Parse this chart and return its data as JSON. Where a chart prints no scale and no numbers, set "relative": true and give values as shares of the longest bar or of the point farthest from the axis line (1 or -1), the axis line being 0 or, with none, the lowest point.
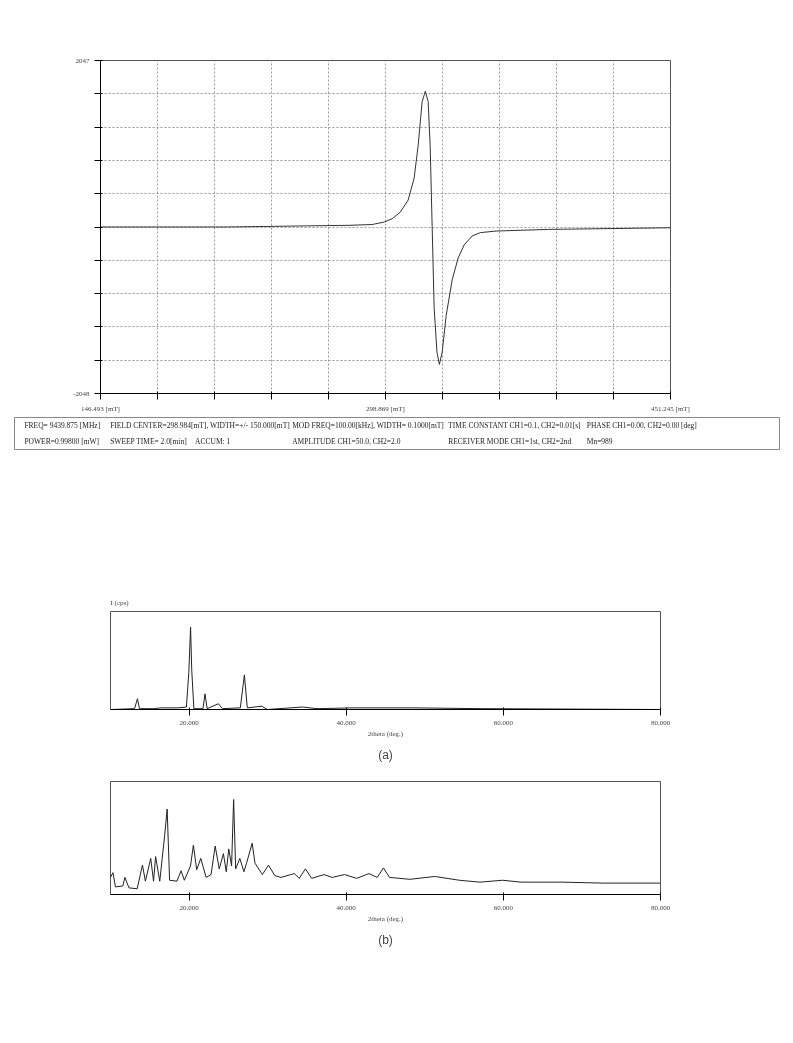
{
  "chart_data": [
    {
      "type": "line",
      "xlim": [
        146.493,
        451.245
      ],
      "ylim": [
        -2048,
        2047
      ],
      "xticks": [
        {
          "value": 146.493,
          "label": "146.493 [mT]"
        },
        {
          "value": 176.968,
          "label": null
        },
        {
          "value": 207.444,
          "label": null
        },
        {
          "value": 237.919,
          "label": null
        },
        {
          "value": 268.394,
          "label": null
        },
        {
          "value": 298.869,
          "label": "298.869 [mT]"
        },
        {
          "value": 329.344,
          "label": null
        },
        {
          "value": 359.82,
          "label": null
        },
        {
          "value": 390.295,
          "label": null
        },
        {
          "value": 420.77,
          "label": null
        },
        {
          "value": 451.245,
          "label": "451.245 [mT]"
        }
      ],
      "yticks": [
        {
          "value": -2048,
          "label": "-2048"
        },
        {
          "value": -1638.5,
          "label": null
        },
        {
          "value": -1229,
          "label": null
        },
        {
          "value": -819.5,
          "label": null
        },
        {
          "value": -410,
          "label": null
        },
        {
          "value": -0.5,
          "label": null
        },
        {
          "value": 409,
          "label": null
        },
        {
          "value": 818.5,
          "label": null
        },
        {
          "value": 1228,
          "label": null
        },
        {
          "value": 1637.5,
          "label": null
        },
        {
          "value": 2047,
          "label": "2047"
        }
      ],
      "grid": true,
      "line_style": "solid",
      "series": [
        {
          "color": "#333333",
          "x": [
            146.493,
            214.6,
            278.84,
            291.7,
            298.12,
            302.4,
            306.68,
            310.97,
            314.18,
            316.32,
            318.46,
            320.18,
            321.68,
            322.75,
            323.82,
            324.89,
            326.39,
            327.67,
            329.17,
            331.31,
            334.52,
            337.74,
            340.95,
            345.23,
            349.52,
            358.08,
            385.92,
            451.24
          ],
          "values": [
            0,
            0,
            20,
            30,
            60,
            100,
            180,
            330,
            600,
            1000,
            1540,
            1670,
            1540,
            1000,
            0,
            -1000,
            -1540,
            -1690,
            -1540,
            -1090,
            -650,
            -380,
            -220,
            -110,
            -70,
            -50,
            -30,
            -10
          ]
        }
      ],
      "annotations": [
        "FREQ= 9439.875 [MHz]",
        "FIELD CENTER=298.984[mT], WIDTH=+/- 150.000[mT]",
        "MOD FREQ=100.00[kHz], WIDTH= 0.1000[mT]",
        "TIME CONSTANT CH1=0.1, CH2=0.01[s]",
        "PHASE CH1=0.00, CH2=0.00 [deg]",
        "POWER=0.99800 [mW]",
        "SWEEP TIME= 2.0[min]",
        "ACCUM: 1",
        "AMPLITUDE CH1=50.0, CH2=2.0",
        "RECEIVER MODE CH1=1st, CH2=2nd",
        "Mn=989"
      ]
    },
    {
      "type": "line",
      "relative": true,
      "xlim": [
        10,
        80
      ],
      "xlabel": "2theta (deg.)",
      "ylabel": "I (cps)",
      "xticks": [
        {
          "value": 20,
          "label": "20.000"
        },
        {
          "value": 40,
          "label": "40.000"
        },
        {
          "value": 60,
          "label": "60.000"
        },
        {
          "value": 80,
          "label": "80.000"
        }
      ],
      "series": [
        {
          "color": "#222222",
          "x": [
            10,
            13.06,
            13.43,
            13.69,
            15.44,
            16.49,
            18.6,
            19.66,
            19.97,
            20.19,
            20.34,
            20.61,
            21.77,
            22.03,
            22.3,
            23.72,
            24.25,
            26.52,
            27.04,
            27.41,
            29.26,
            29.95,
            34.43,
            36.28,
            41.03,
            48.42,
            57.39,
            80
          ],
          "values": [
            0,
            0.01,
            0.13,
            0.01,
            0.01,
            0.02,
            0.02,
            0.03,
            0.45,
            1.0,
            0.48,
            0.01,
            0.01,
            0.19,
            0.01,
            0.07,
            0.01,
            0.02,
            0.42,
            0.02,
            0.04,
            0,
            0.03,
            0.01,
            0.02,
            0.02,
            0.01,
            0
          ]
        }
      ],
      "annotations": [
        "(a)"
      ]
    },
    {
      "type": "line",
      "relative": true,
      "xlim": [
        10,
        80
      ],
      "xlabel": "2theta (deg.)",
      "xticks": [
        {
          "value": 20,
          "label": "20.000"
        },
        {
          "value": 40,
          "label": "40.000"
        },
        {
          "value": 60,
          "label": "60.000"
        },
        {
          "value": 80,
          "label": "80.000"
        }
      ],
      "series": [
        {
          "color": "#222222",
          "x": [
            10,
            10.31,
            10.63,
            11.57,
            11.83,
            12.35,
            13.39,
            14.07,
            14.44,
            15.12,
            15.48,
            15.74,
            16.27,
            16.89,
            17.21,
            17.52,
            18.46,
            18.98,
            19.4,
            20.18,
            20.55,
            20.97,
            21.49,
            22.17,
            22.8,
            23.32,
            23.84,
            24.37,
            24.73,
            25.05,
            25.41,
            25.67,
            25.93,
            26.46,
            26.98,
            27.35,
            28.03,
            28.39,
            29.33,
            30.11,
            30.9,
            31.68,
            33.4,
            34.03,
            34.81,
            35.6,
            37.17,
            38.21,
            39.78,
            41.33,
            42.9,
            43.95,
            44.73,
            45.52,
            48.13,
            51.27,
            54.4,
            57.02,
            59.9,
            62.25,
            67.48,
            72.71,
            80
          ],
          "values": [
            0.18,
            0.23,
            0.08,
            0.09,
            0.18,
            0.07,
            0.06,
            0.31,
            0.14,
            0.38,
            0.14,
            0.4,
            0.14,
            0.62,
            0.9,
            0.15,
            0.14,
            0.25,
            0.15,
            0.3,
            0.52,
            0.26,
            0.38,
            0.18,
            0.21,
            0.51,
            0.27,
            0.43,
            0.24,
            0.48,
            0.3,
            1.0,
            0.27,
            0.38,
            0.24,
            0.34,
            0.54,
            0.33,
            0.21,
            0.31,
            0.2,
            0.18,
            0.22,
            0.17,
            0.27,
            0.17,
            0.21,
            0.18,
            0.21,
            0.17,
            0.22,
            0.18,
            0.28,
            0.18,
            0.16,
            0.19,
            0.15,
            0.13,
            0.15,
            0.13,
            0.13,
            0.12,
            0.12
          ]
        }
      ],
      "annotations": [
        "(b)"
      ]
    }
  ]
}
